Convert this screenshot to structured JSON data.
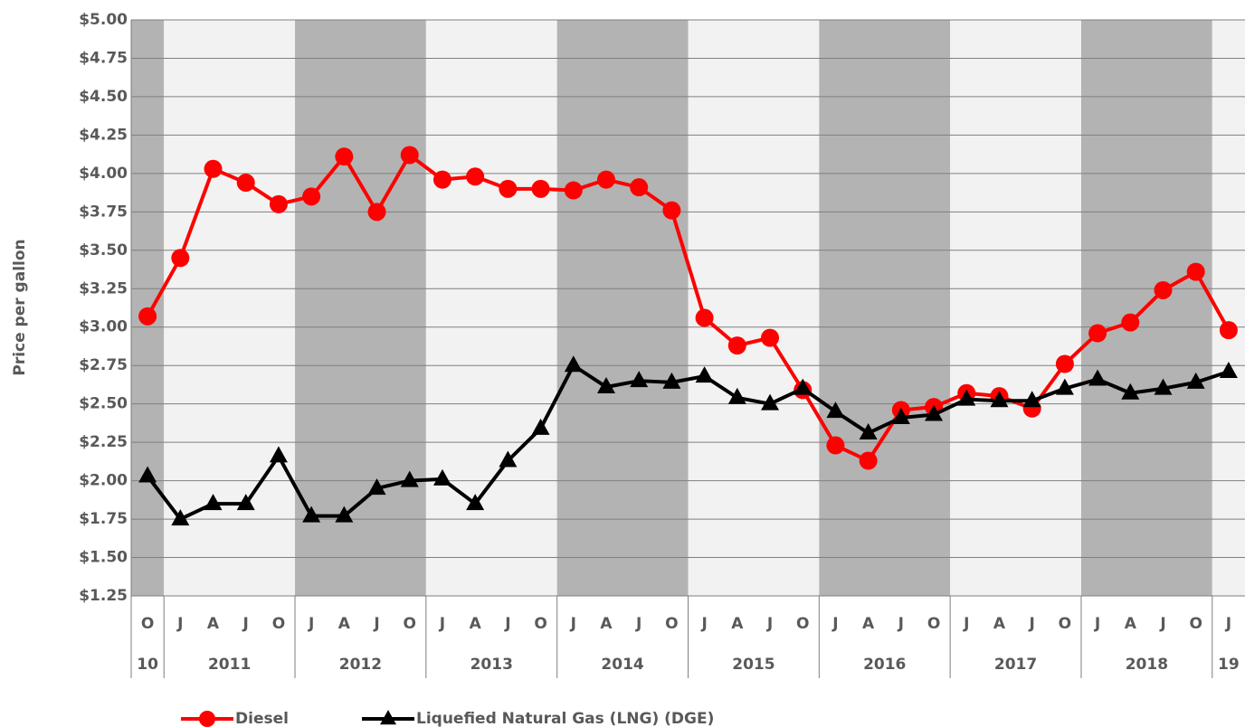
{
  "chart_data": {
    "type": "line",
    "y_label": "Price per gallon",
    "categories": [
      "O",
      "J",
      "A",
      "J",
      "O",
      "J",
      "A",
      "J",
      "O",
      "J",
      "A",
      "J",
      "O",
      "J",
      "A",
      "J",
      "O",
      "J",
      "A",
      "J",
      "O",
      "J",
      "A",
      "J",
      "O",
      "J",
      "A",
      "J",
      "O",
      "J",
      "A",
      "J",
      "O",
      "J"
    ],
    "year_labels": [
      "10",
      "2011",
      "2012",
      "2013",
      "2014",
      "2015",
      "2016",
      "2017",
      "2018",
      "19"
    ],
    "series": [
      {
        "name": "Diesel",
        "color": "#ff0000",
        "marker": "circle",
        "values": [
          3.07,
          3.45,
          4.03,
          3.94,
          3.8,
          3.85,
          4.11,
          3.75,
          4.12,
          3.96,
          3.98,
          3.9,
          3.9,
          3.89,
          3.96,
          3.91,
          3.76,
          3.06,
          2.88,
          2.93,
          2.59,
          2.23,
          2.13,
          2.46,
          2.48,
          2.57,
          2.55,
          2.47,
          2.76,
          2.96,
          3.03,
          3.24,
          3.36,
          2.98
        ]
      },
      {
        "name": "Liquefied Natural Gas (LNG) (DGE)",
        "color": "#000000",
        "marker": "triangle",
        "values": [
          2.03,
          1.75,
          1.85,
          1.85,
          2.16,
          1.77,
          1.77,
          1.95,
          2.0,
          2.01,
          1.85,
          2.13,
          2.34,
          2.75,
          2.61,
          2.65,
          2.64,
          2.68,
          2.54,
          2.5,
          2.6,
          2.45,
          2.31,
          2.41,
          2.43,
          2.53,
          2.52,
          2.52,
          2.6,
          2.66,
          2.57,
          2.6,
          2.64,
          2.71
        ]
      }
    ],
    "ylim": [
      1.25,
      5.0
    ],
    "yticks": [
      {
        "value": 1.25,
        "label": "$1.25"
      },
      {
        "value": 1.5,
        "label": "$1.50"
      },
      {
        "value": 1.75,
        "label": "$1.75"
      },
      {
        "value": 2.0,
        "label": "$2.00"
      },
      {
        "value": 2.25,
        "label": "$2.25"
      },
      {
        "value": 2.5,
        "label": "$2.50"
      },
      {
        "value": 2.75,
        "label": "$2.75"
      },
      {
        "value": 3.0,
        "label": "$3.00"
      },
      {
        "value": 3.25,
        "label": "$3.25"
      },
      {
        "value": 3.5,
        "label": "$3.50"
      },
      {
        "value": 3.75,
        "label": "$3.75"
      },
      {
        "value": 4.0,
        "label": "$4.00"
      },
      {
        "value": 4.25,
        "label": "$4.25"
      },
      {
        "value": 4.5,
        "label": "$4.50"
      },
      {
        "value": 4.75,
        "label": "$4.75"
      },
      {
        "value": 5.0,
        "label": "$5.00"
      }
    ],
    "grid": true
  }
}
